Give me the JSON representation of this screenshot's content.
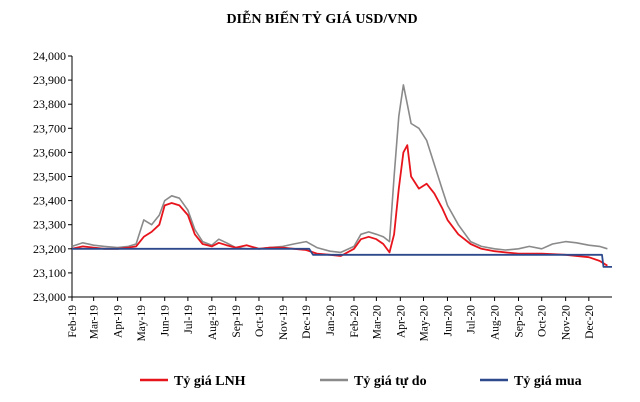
{
  "chart_data": {
    "type": "line",
    "title": "DIỄN BIẾN TỶ GIÁ USD/VND",
    "xlabel": "",
    "ylabel": "",
    "x_ticks": [
      "Feb-19",
      "Mar-19",
      "Apr-19",
      "May-19",
      "Jun-19",
      "Jul-19",
      "Aug-19",
      "Sep-19",
      "Oct-19",
      "Nov-19",
      "Dec-19",
      "Jan-20",
      "Feb-20",
      "Mar-20",
      "Apr-20",
      "May-20",
      "Jun-20",
      "Jul-20",
      "Aug-20",
      "Sep-20",
      "Oct-20",
      "Nov-20",
      "Dec-20"
    ],
    "y_ticks": [
      "23,000",
      "23,100",
      "23,200",
      "23,300",
      "23,400",
      "23,500",
      "23,600",
      "23,700",
      "23,800",
      "23,900",
      "24,000"
    ],
    "ylim": [
      23000,
      24000
    ],
    "xlim": [
      "2019-02-01",
      "2020-12-31"
    ],
    "grid": false,
    "legend_position": "bottom",
    "series": [
      {
        "name": "Tỷ giá LNH",
        "color": "#e8141c",
        "points": [
          [
            "2019-02-01",
            23200
          ],
          [
            "2019-02-15",
            23210
          ],
          [
            "2019-03-01",
            23205
          ],
          [
            "2019-03-15",
            23200
          ],
          [
            "2019-04-01",
            23200
          ],
          [
            "2019-04-15",
            23205
          ],
          [
            "2019-04-25",
            23210
          ],
          [
            "2019-05-05",
            23250
          ],
          [
            "2019-05-15",
            23270
          ],
          [
            "2019-05-25",
            23300
          ],
          [
            "2019-06-01",
            23380
          ],
          [
            "2019-06-10",
            23390
          ],
          [
            "2019-06-20",
            23380
          ],
          [
            "2019-07-01",
            23340
          ],
          [
            "2019-07-10",
            23260
          ],
          [
            "2019-07-20",
            23220
          ],
          [
            "2019-08-01",
            23210
          ],
          [
            "2019-08-10",
            23225
          ],
          [
            "2019-08-20",
            23215
          ],
          [
            "2019-09-01",
            23205
          ],
          [
            "2019-09-15",
            23215
          ],
          [
            "2019-10-01",
            23200
          ],
          [
            "2019-10-15",
            23205
          ],
          [
            "2019-11-01",
            23205
          ],
          [
            "2019-11-15",
            23200
          ],
          [
            "2019-12-01",
            23195
          ],
          [
            "2019-12-15",
            23180
          ],
          [
            "2020-01-01",
            23175
          ],
          [
            "2020-01-15",
            23170
          ],
          [
            "2020-02-01",
            23200
          ],
          [
            "2020-02-10",
            23240
          ],
          [
            "2020-02-20",
            23250
          ],
          [
            "2020-03-01",
            23240
          ],
          [
            "2020-03-10",
            23220
          ],
          [
            "2020-03-18",
            23185
          ],
          [
            "2020-03-24",
            23260
          ],
          [
            "2020-03-30",
            23450
          ],
          [
            "2020-04-05",
            23600
          ],
          [
            "2020-04-10",
            23630
          ],
          [
            "2020-04-15",
            23500
          ],
          [
            "2020-04-25",
            23450
          ],
          [
            "2020-05-05",
            23470
          ],
          [
            "2020-05-15",
            23430
          ],
          [
            "2020-05-25",
            23370
          ],
          [
            "2020-06-01",
            23320
          ],
          [
            "2020-06-15",
            23260
          ],
          [
            "2020-07-01",
            23220
          ],
          [
            "2020-07-15",
            23200
          ],
          [
            "2020-08-01",
            23190
          ],
          [
            "2020-08-15",
            23185
          ],
          [
            "2020-09-01",
            23180
          ],
          [
            "2020-09-15",
            23180
          ],
          [
            "2020-10-01",
            23180
          ],
          [
            "2020-10-15",
            23178
          ],
          [
            "2020-11-01",
            23175
          ],
          [
            "2020-11-15",
            23170
          ],
          [
            "2020-12-01",
            23165
          ],
          [
            "2020-12-15",
            23150
          ],
          [
            "2020-12-25",
            23130
          ]
        ]
      },
      {
        "name": "Tỷ giá tự do",
        "color": "#8a8a8a",
        "points": [
          [
            "2019-02-01",
            23210
          ],
          [
            "2019-02-15",
            23225
          ],
          [
            "2019-03-01",
            23215
          ],
          [
            "2019-03-15",
            23210
          ],
          [
            "2019-04-01",
            23205
          ],
          [
            "2019-04-15",
            23210
          ],
          [
            "2019-04-25",
            23220
          ],
          [
            "2019-05-05",
            23320
          ],
          [
            "2019-05-15",
            23300
          ],
          [
            "2019-05-25",
            23340
          ],
          [
            "2019-06-01",
            23400
          ],
          [
            "2019-06-10",
            23420
          ],
          [
            "2019-06-20",
            23410
          ],
          [
            "2019-07-01",
            23360
          ],
          [
            "2019-07-10",
            23280
          ],
          [
            "2019-07-20",
            23230
          ],
          [
            "2019-08-01",
            23215
          ],
          [
            "2019-08-10",
            23240
          ],
          [
            "2019-08-20",
            23225
          ],
          [
            "2019-09-01",
            23205
          ],
          [
            "2019-09-15",
            23200
          ],
          [
            "2019-10-01",
            23200
          ],
          [
            "2019-10-15",
            23205
          ],
          [
            "2019-11-01",
            23210
          ],
          [
            "2019-11-15",
            23220
          ],
          [
            "2019-12-01",
            23230
          ],
          [
            "2019-12-15",
            23205
          ],
          [
            "2020-01-01",
            23190
          ],
          [
            "2020-01-15",
            23185
          ],
          [
            "2020-02-01",
            23210
          ],
          [
            "2020-02-10",
            23260
          ],
          [
            "2020-02-20",
            23270
          ],
          [
            "2020-03-01",
            23260
          ],
          [
            "2020-03-10",
            23250
          ],
          [
            "2020-03-18",
            23230
          ],
          [
            "2020-03-24",
            23500
          ],
          [
            "2020-03-30",
            23750
          ],
          [
            "2020-04-05",
            23880
          ],
          [
            "2020-04-10",
            23800
          ],
          [
            "2020-04-15",
            23720
          ],
          [
            "2020-04-25",
            23700
          ],
          [
            "2020-05-05",
            23650
          ],
          [
            "2020-05-15",
            23550
          ],
          [
            "2020-05-25",
            23450
          ],
          [
            "2020-06-01",
            23380
          ],
          [
            "2020-06-15",
            23300
          ],
          [
            "2020-07-01",
            23230
          ],
          [
            "2020-07-15",
            23210
          ],
          [
            "2020-08-01",
            23200
          ],
          [
            "2020-08-15",
            23195
          ],
          [
            "2020-09-01",
            23200
          ],
          [
            "2020-09-15",
            23210
          ],
          [
            "2020-10-01",
            23200
          ],
          [
            "2020-10-15",
            23220
          ],
          [
            "2020-11-01",
            23230
          ],
          [
            "2020-11-15",
            23225
          ],
          [
            "2020-12-01",
            23215
          ],
          [
            "2020-12-15",
            23210
          ],
          [
            "2020-12-25",
            23200
          ]
        ]
      },
      {
        "name": "Tỷ giá mua",
        "color": "#2e4a8c",
        "points": [
          [
            "2019-02-01",
            23200
          ],
          [
            "2019-12-05",
            23200
          ],
          [
            "2019-12-10",
            23175
          ],
          [
            "2020-12-18",
            23175
          ],
          [
            "2020-12-20",
            23125
          ],
          [
            "2020-12-31",
            23125
          ]
        ]
      }
    ]
  }
}
